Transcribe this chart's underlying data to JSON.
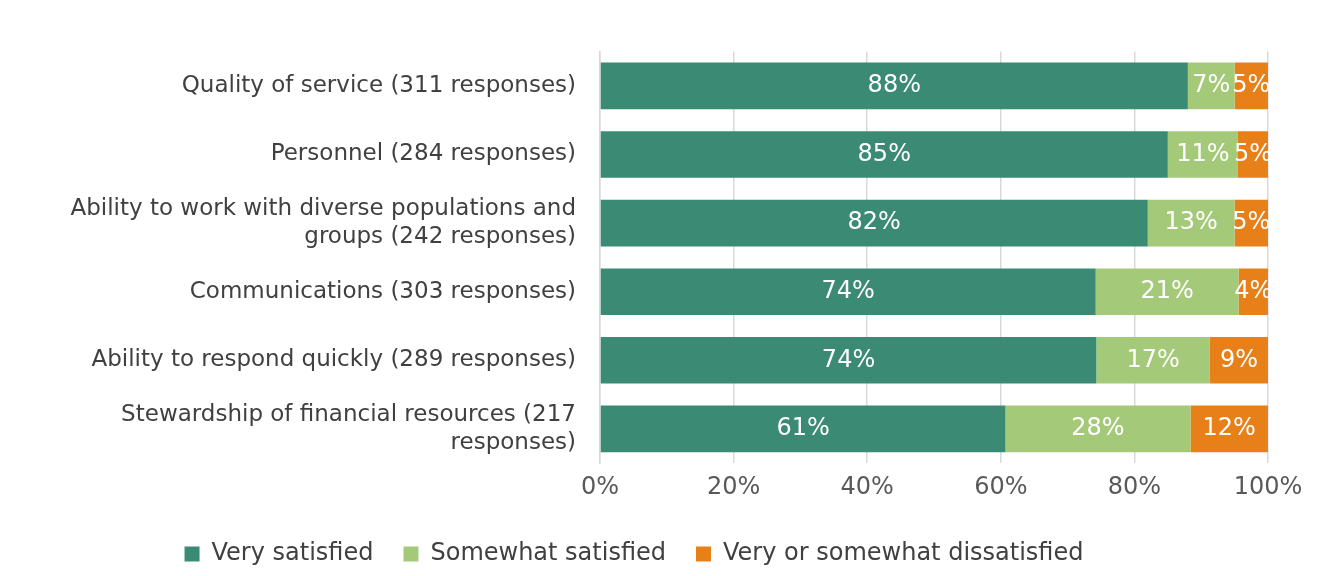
{
  "chart_data": {
    "type": "bar",
    "orientation": "horizontal",
    "stacked": true,
    "categories": [
      "Quality of service (311 responses)",
      "Personnel (284 responses)",
      "Ability to work with diverse populations and groups (242 responses)",
      "Communications (303 responses)",
      "Ability to respond quickly (289 responses)",
      "Stewardship of financial resources (217 responses)"
    ],
    "series": [
      {
        "name": "Very satisfied",
        "color": "#3a8a74",
        "values": [
          88,
          85,
          82,
          74.2,
          74.3,
          60.7
        ],
        "value_labels": [
          "88%",
          "85%",
          "82%",
          "74%",
          "74%",
          "61%"
        ]
      },
      {
        "name": "Somewhat satisfied",
        "color": "#a4c979",
        "values": [
          7,
          10.5,
          13,
          21.4,
          17,
          27.7
        ],
        "value_labels": [
          "7%",
          "11%",
          "13%",
          "21%",
          "17%",
          "28%"
        ]
      },
      {
        "name": "Very or somewhat dissatisfied",
        "color": "#e8801a",
        "values": [
          5,
          4.5,
          5,
          4.4,
          8.7,
          11.6
        ],
        "value_labels": [
          "5%",
          "5%",
          "5%",
          "4%",
          "9%",
          "12%"
        ]
      }
    ],
    "xlim": [
      0,
      100
    ],
    "xticks": [
      {
        "value": 0,
        "label": "0%"
      },
      {
        "value": 20,
        "label": "20%"
      },
      {
        "value": 40,
        "label": "40%"
      },
      {
        "value": 60,
        "label": "60%"
      },
      {
        "value": 80,
        "label": "80%"
      },
      {
        "value": 100,
        "label": "100%"
      }
    ],
    "grid": "x",
    "legend": "bottom"
  }
}
